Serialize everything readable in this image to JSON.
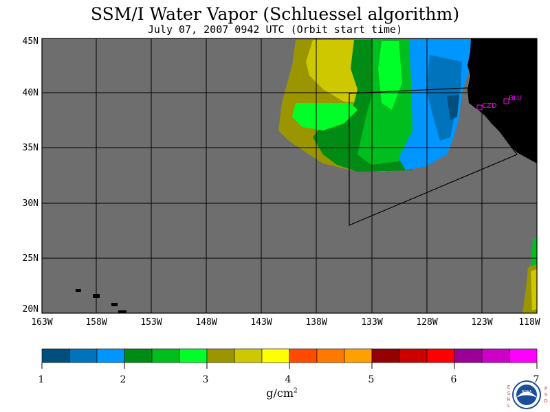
{
  "title": "SSM/I Water Vapor (Schluessel algorithm)",
  "subtitle": "July 07, 2007  0942 UTC  (Orbit start time)",
  "lat_labels": [
    "45N",
    "40N",
    "35N",
    "30N",
    "25N",
    "20N"
  ],
  "lon_labels": [
    "163W",
    "158W",
    "153W",
    "148W",
    "143W",
    "138W",
    "133W",
    "128W",
    "123W",
    "118W"
  ],
  "stations": [
    {
      "label": "CZD"
    },
    {
      "label": "BLU"
    }
  ],
  "colorbar": {
    "ticks": [
      "1",
      "2",
      "3",
      "4",
      "5",
      "6",
      "7"
    ],
    "unit": "g/cm",
    "unit_sup": "2",
    "colors": [
      "#004f7c",
      "#0073bd",
      "#0096ff",
      "#008c14",
      "#00be1e",
      "#00ff28",
      "#9b9600",
      "#cdc800",
      "#ffff00",
      "#ff4b00",
      "#ff7800",
      "#ffa000",
      "#960000",
      "#cd0000",
      "#ff0000",
      "#9b0096",
      "#cd00c8",
      "#ff00ff"
    ]
  },
  "logo": {
    "text": "NOAA",
    "left_letters": "ESRL",
    "right_letters": "PSD"
  },
  "colors": {
    "background_gray": "#6e6e6e",
    "land": "#000000",
    "station_marker": "#ff00ff",
    "grid": "#000000"
  }
}
